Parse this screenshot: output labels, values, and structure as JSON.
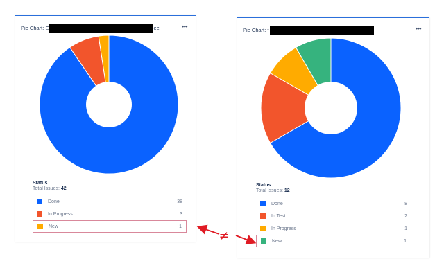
{
  "colors": {
    "done": "#0a62ff",
    "in_test": "#f2552c",
    "in_progress_left": "#f2552c",
    "in_progress_right": "#ffab00",
    "new_left": "#ffab00",
    "new_right": "#36b37e",
    "accent": "#2a6fdb",
    "highlight": "#d9889b",
    "annotation": "#e01b24"
  },
  "left_card": {
    "title_prefix": "Pie Chart: E",
    "title_suffix": "ee",
    "more_label": "•••",
    "legend_heading": "Status",
    "total_label": "Total Issues: ",
    "total_value": "42",
    "items": [
      {
        "label": "Done",
        "value": "38"
      },
      {
        "label": "In Progress",
        "value": "3"
      },
      {
        "label": "New",
        "value": "1"
      }
    ]
  },
  "right_card": {
    "title_prefix": "Pie Chart: f",
    "more_label": "•••",
    "legend_heading": "Status",
    "total_label": "Total Issues: ",
    "total_value": "12",
    "items": [
      {
        "label": "Done",
        "value": "8"
      },
      {
        "label": "In Test",
        "value": "2"
      },
      {
        "label": "In Progress",
        "value": "1"
      },
      {
        "label": "New",
        "value": "1"
      }
    ]
  },
  "annotation": {
    "symbol": "≠"
  },
  "chart_data": [
    {
      "type": "pie",
      "title": "Pie Chart (left)",
      "subtitle": "Status — Total Issues: 42",
      "categories": [
        "Done",
        "In Progress",
        "New"
      ],
      "values": [
        38,
        3,
        1
      ],
      "colors": [
        "#0a62ff",
        "#f2552c",
        "#ffab00"
      ],
      "donut": true,
      "legend_position": "bottom"
    },
    {
      "type": "pie",
      "title": "Pie Chart (right)",
      "subtitle": "Status — Total Issues: 12",
      "categories": [
        "Done",
        "In Test",
        "In Progress",
        "New"
      ],
      "values": [
        8,
        2,
        1,
        1
      ],
      "colors": [
        "#0a62ff",
        "#f2552c",
        "#ffab00",
        "#36b37e"
      ],
      "donut": true,
      "legend_position": "bottom"
    }
  ]
}
